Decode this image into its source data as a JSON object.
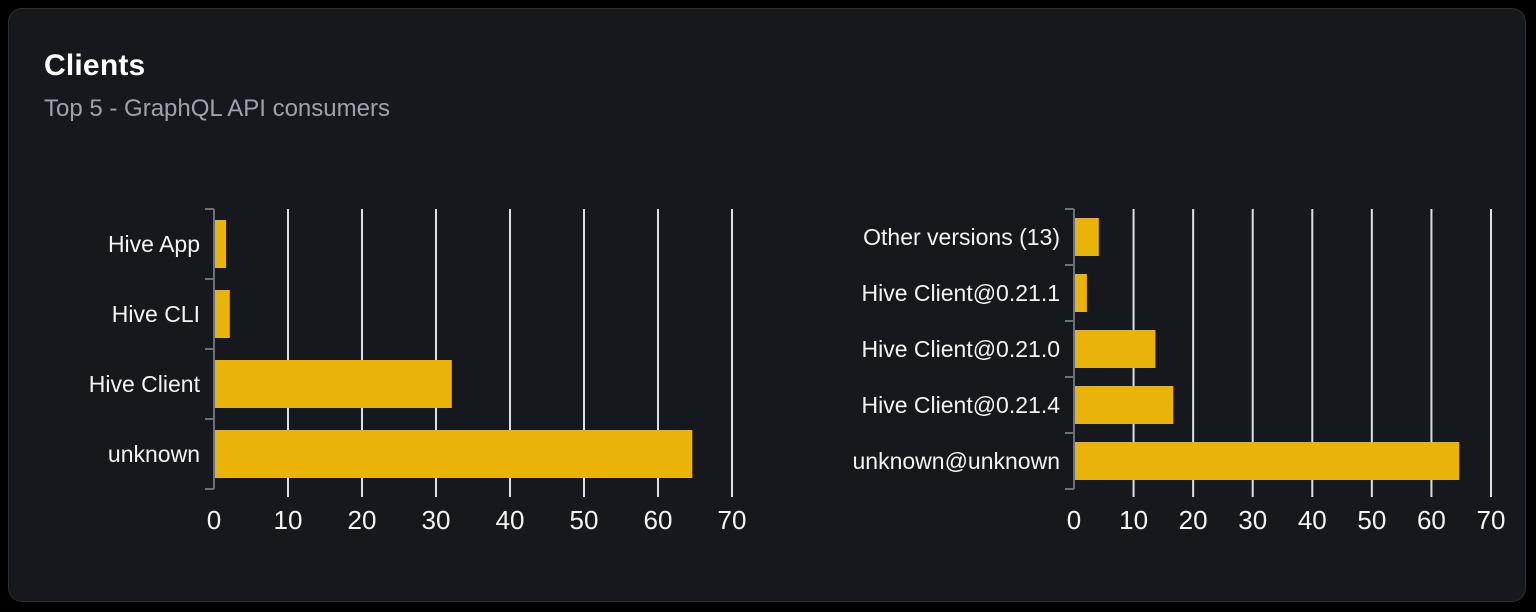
{
  "card": {
    "title": "Clients",
    "subtitle": "Top 5 - GraphQL API consumers"
  },
  "colors": {
    "page_bg": "#000000",
    "card_bg": "#15181D",
    "card_border": "#2A2E35",
    "title": "#FFFFFF",
    "subtitle": "#9CA3AF",
    "bar": "#EAB308",
    "gridline": "#DCE0E6",
    "axis": "#6B7076",
    "tick_label": "#F4F4F5"
  },
  "chart_data": [
    {
      "type": "bar",
      "orientation": "horizontal",
      "title": "",
      "xlabel": "",
      "ylabel": "",
      "categories": [
        "Hive App",
        "Hive CLI",
        "Hive Client",
        "unknown"
      ],
      "values": [
        1.5,
        2,
        32,
        64.5
      ],
      "category_order": "top-to-bottom",
      "xlim": [
        0,
        70
      ],
      "xticks": [
        0,
        10,
        20,
        30,
        40,
        50,
        60,
        70
      ],
      "grid": true,
      "legend": false
    },
    {
      "type": "bar",
      "orientation": "horizontal",
      "title": "",
      "xlabel": "",
      "ylabel": "",
      "categories": [
        "Other versions (13)",
        "Hive Client@0.21.1",
        "Hive Client@0.21.0",
        "Hive Client@0.21.4",
        "unknown@unknown"
      ],
      "values": [
        4,
        2,
        13.5,
        16.5,
        64.5
      ],
      "category_order": "top-to-bottom",
      "xlim": [
        0,
        70
      ],
      "xticks": [
        0,
        10,
        20,
        30,
        40,
        50,
        60,
        70
      ],
      "grid": true,
      "legend": false
    }
  ]
}
